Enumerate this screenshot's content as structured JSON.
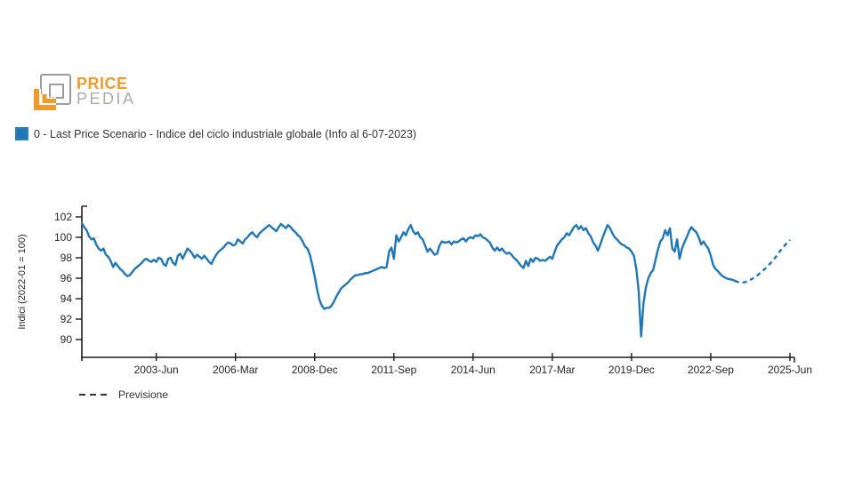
{
  "brand": {
    "word_top": "PRICE",
    "word_bottom": "PEDIA",
    "orange": "#EE9B2D",
    "gray": "#9C9C9C"
  },
  "legend": {
    "series_label": "0 - Last Price Scenario - Indice del ciclo industriale globale (Info al 6-07-2023)",
    "swatch_color": "#2077B4",
    "forecast_label": "Previsione"
  },
  "chart_data": {
    "type": "line",
    "title": "",
    "ylabel": "Indici (2022-01 = 100)",
    "y_ticks": [
      102,
      100,
      98,
      96,
      94,
      92,
      90
    ],
    "ylim": [
      88.3,
      103.0
    ],
    "x_tick_labels": [
      "2003-Jun",
      "2006-Mar",
      "2008-Dec",
      "2011-Sep",
      "2014-Jun",
      "2017-Mar",
      "2019-Dec",
      "2022-Sep",
      "2025-Jun"
    ],
    "x_tick_month_index": [
      31,
      64,
      97,
      130,
      163,
      196,
      229,
      262,
      295
    ],
    "x_start": "2000-11",
    "x_end": "2025-06",
    "frequency": "monthly",
    "line_color": "#2077B4",
    "axis_color": "#1a1a1a",
    "forecast_start_index": 272,
    "forecast_style": "dashed",
    "legend_position": "top-left",
    "grid": false,
    "series": [
      {
        "name": "0 - Last Price Scenario - Indice del ciclo industriale globale",
        "values": [
          101.4,
          101.0,
          100.7,
          100.1,
          99.8,
          99.9,
          99.3,
          98.9,
          98.7,
          98.9,
          98.3,
          98.1,
          97.7,
          97.1,
          97.5,
          97.2,
          96.9,
          96.7,
          96.4,
          96.2,
          96.3,
          96.6,
          96.9,
          97.1,
          97.3,
          97.5,
          97.8,
          97.9,
          97.7,
          97.6,
          97.8,
          97.6,
          98.0,
          97.9,
          97.4,
          97.2,
          97.9,
          98.0,
          97.5,
          97.3,
          98.2,
          98.4,
          97.9,
          98.4,
          98.9,
          98.7,
          98.4,
          98.0,
          98.3,
          98.1,
          97.9,
          98.2,
          97.9,
          97.6,
          97.4,
          97.9,
          98.3,
          98.6,
          98.8,
          99.0,
          99.3,
          99.5,
          99.4,
          99.2,
          99.3,
          99.8,
          99.6,
          99.4,
          99.8,
          100.0,
          100.3,
          100.5,
          100.2,
          100.0,
          100.4,
          100.6,
          100.8,
          101.0,
          101.2,
          101.0,
          100.8,
          100.6,
          101.0,
          101.3,
          101.1,
          100.9,
          101.2,
          101.0,
          100.7,
          100.5,
          100.2,
          100.0,
          99.6,
          99.1,
          98.9,
          98.3,
          97.3,
          96.2,
          94.9,
          93.9,
          93.3,
          93.0,
          93.1,
          93.1,
          93.3,
          93.7,
          94.2,
          94.6,
          95.0,
          95.2,
          95.4,
          95.6,
          95.9,
          96.1,
          96.3,
          96.3,
          96.4,
          96.4,
          96.5,
          96.5,
          96.6,
          96.7,
          96.8,
          96.9,
          97.0,
          97.1,
          97.0,
          97.1,
          98.6,
          99.0,
          97.9,
          100.2,
          99.6,
          100.0,
          100.5,
          100.2,
          100.8,
          101.2,
          100.6,
          100.3,
          100.5,
          100.0,
          99.8,
          99.2,
          98.6,
          98.9,
          98.6,
          98.3,
          98.4,
          99.2,
          99.6,
          99.5,
          99.5,
          99.6,
          99.3,
          99.6,
          99.5,
          99.6,
          99.8,
          99.9,
          99.6,
          99.9,
          100.0,
          99.9,
          100.2,
          100.1,
          100.3,
          100.0,
          99.9,
          99.7,
          99.5,
          99.0,
          98.7,
          99.0,
          98.7,
          98.9,
          98.6,
          98.4,
          98.5,
          98.3,
          98.0,
          97.8,
          97.5,
          97.2,
          97.0,
          97.7,
          97.2,
          97.9,
          97.6,
          98.0,
          97.9,
          97.7,
          97.8,
          97.7,
          97.9,
          98.1,
          97.9,
          98.6,
          99.2,
          99.5,
          99.8,
          100.0,
          100.4,
          100.2,
          100.6,
          101.0,
          101.2,
          100.8,
          101.1,
          100.7,
          100.9,
          100.4,
          100.1,
          99.5,
          99.2,
          98.7,
          99.3,
          100.0,
          100.6,
          101.2,
          100.9,
          100.4,
          100.0,
          99.8,
          99.5,
          99.3,
          99.2,
          99.0,
          98.9,
          98.6,
          98.2,
          96.9,
          94.7,
          90.3,
          93.6,
          95.1,
          96.0,
          96.5,
          96.8,
          97.8,
          98.8,
          99.6,
          99.9,
          100.7,
          100.2,
          100.9,
          98.9,
          98.6,
          99.8,
          97.9,
          98.9,
          99.5,
          100.0,
          100.6,
          101.0,
          100.7,
          100.5,
          100.0,
          99.3,
          99.6,
          99.2,
          98.9,
          98.2,
          97.3,
          96.9,
          96.7,
          96.4,
          96.2,
          96.05,
          95.95,
          95.9,
          95.85,
          95.75,
          95.65,
          95.6,
          95.58,
          95.6,
          95.68,
          95.8,
          95.9,
          96.05,
          96.2,
          96.4,
          96.6,
          96.8,
          97.0,
          97.25,
          97.5,
          97.75,
          98.05,
          98.4,
          98.7,
          99.0,
          99.25,
          99.5,
          99.75
        ]
      }
    ]
  }
}
